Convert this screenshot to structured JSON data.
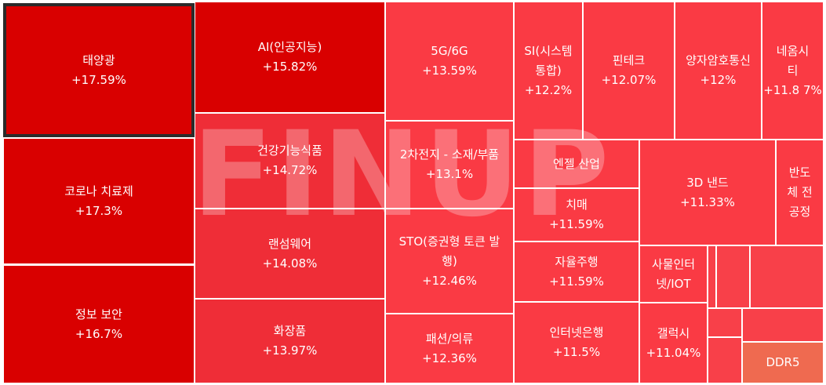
{
  "watermark": "FINUP",
  "tiles": [
    {
      "name": "태양광",
      "change": "+17.59%"
    },
    {
      "name": "코로나 치료제",
      "change": "+17.3%"
    },
    {
      "name": "정보 보안",
      "change": "+16.7%"
    },
    {
      "name": "AI(인공지능)",
      "change": "+15.82%"
    },
    {
      "name": "건강기능식품",
      "change": "+14.72%"
    },
    {
      "name": "랜섬웨어",
      "change": "+14.08%"
    },
    {
      "name": "화장품",
      "change": "+13.97%"
    },
    {
      "name": "5G/6G",
      "change": "+13.59%"
    },
    {
      "name": "2차전지 - 소재/부품",
      "change": "+13.1%"
    },
    {
      "name": "STO(증권형 토큰 발\n행)",
      "change": "+12.46%"
    },
    {
      "name": "패션/의류",
      "change": "+12.36%"
    },
    {
      "name": "SI(시스템\n통합)",
      "change": "+12.2%"
    },
    {
      "name": "핀테크",
      "change": "+12.07%"
    },
    {
      "name": "양자암호통신",
      "change": "+12%"
    },
    {
      "name": "네옴시\n티",
      "change": "+11.8\n7%"
    },
    {
      "name": "엔젤 산업",
      "change": ""
    },
    {
      "name": "치매",
      "change": "+11.59%"
    },
    {
      "name": "자율주행",
      "change": "+11.59%"
    },
    {
      "name": "인터넷은행",
      "change": "+11.5%"
    },
    {
      "name": "3D 낸드",
      "change": "+11.33%"
    },
    {
      "name": "반도\n체 전\n공정",
      "change": ""
    },
    {
      "name": "사물인터\n넷/IOT",
      "change": ""
    },
    {
      "name": "갤럭시",
      "change": "+11.04%"
    },
    {
      "name": "DDR5",
      "change": ""
    }
  ]
}
